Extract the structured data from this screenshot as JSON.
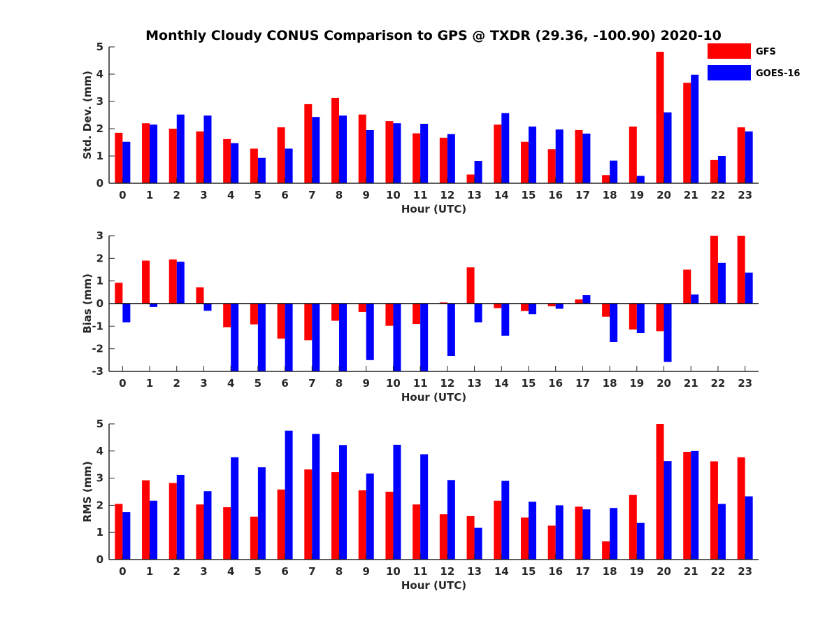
{
  "title": "Monthly Cloudy CONUS Comparison to GPS @ TXDR (29.36, -100.90) 2020-10",
  "legend": {
    "position": "top-right",
    "entries": [
      {
        "name": "GFS",
        "color": "#ff0000"
      },
      {
        "name": "GOES-16",
        "color": "#0000ff"
      }
    ]
  },
  "chart_data": [
    {
      "type": "bar",
      "xlabel": "Hour (UTC)",
      "ylabel": "Std. Dev. (mm)",
      "ylim": [
        0,
        5
      ],
      "yticks": [
        0,
        1,
        2,
        3,
        4,
        5
      ],
      "categories": [
        "0",
        "1",
        "2",
        "3",
        "4",
        "5",
        "6",
        "7",
        "8",
        "9",
        "10",
        "11",
        "12",
        "13",
        "14",
        "15",
        "16",
        "17",
        "18",
        "19",
        "20",
        "21",
        "22",
        "23"
      ],
      "series": [
        {
          "name": "GFS",
          "color": "#ff0000",
          "values": [
            1.85,
            2.2,
            2.0,
            1.9,
            1.62,
            1.27,
            2.05,
            2.9,
            3.13,
            2.52,
            2.28,
            1.83,
            1.67,
            0.32,
            2.15,
            1.52,
            1.25,
            1.95,
            0.3,
            2.08,
            4.82,
            3.68,
            0.85,
            2.05
          ]
        },
        {
          "name": "GOES-16",
          "color": "#0000ff",
          "values": [
            1.52,
            2.15,
            2.52,
            2.48,
            1.47,
            0.93,
            1.27,
            2.43,
            2.48,
            1.95,
            2.2,
            2.18,
            1.8,
            0.82,
            2.57,
            2.08,
            1.97,
            1.82,
            0.83,
            0.27,
            2.6,
            3.98,
            1.0,
            1.9
          ]
        }
      ]
    },
    {
      "type": "bar",
      "xlabel": "Hour (UTC)",
      "ylabel": "Bias (mm)",
      "ylim": [
        -3,
        3
      ],
      "yticks": [
        -3,
        -2,
        -1,
        0,
        1,
        2,
        3
      ],
      "categories": [
        "0",
        "1",
        "2",
        "3",
        "4",
        "5",
        "6",
        "7",
        "8",
        "9",
        "10",
        "11",
        "12",
        "13",
        "14",
        "15",
        "16",
        "17",
        "18",
        "19",
        "20",
        "21",
        "22",
        "23"
      ],
      "series": [
        {
          "name": "GFS",
          "color": "#ff0000",
          "values": [
            0.92,
            1.9,
            1.95,
            0.72,
            -1.05,
            -0.92,
            -1.55,
            -1.62,
            -0.76,
            -0.37,
            -0.98,
            -0.9,
            0.05,
            1.6,
            -0.2,
            -0.33,
            -0.12,
            0.18,
            -0.58,
            -1.15,
            -1.22,
            1.5,
            3.0,
            3.0
          ]
        },
        {
          "name": "GOES-16",
          "color": "#0000ff",
          "values": [
            -0.83,
            -0.15,
            1.85,
            -0.32,
            -3.0,
            -3.0,
            -3.0,
            -3.0,
            -3.0,
            -2.5,
            -3.0,
            -3.0,
            -2.32,
            -0.83,
            -1.42,
            -0.47,
            -0.23,
            0.37,
            -1.7,
            -1.3,
            -2.58,
            0.4,
            1.8,
            1.37
          ]
        }
      ]
    },
    {
      "type": "bar",
      "xlabel": "Hour (UTC)",
      "ylabel": "RMS (mm)",
      "ylim": [
        0,
        5
      ],
      "yticks": [
        0,
        1,
        2,
        3,
        4,
        5
      ],
      "categories": [
        "0",
        "1",
        "2",
        "3",
        "4",
        "5",
        "6",
        "7",
        "8",
        "9",
        "10",
        "11",
        "12",
        "13",
        "14",
        "15",
        "16",
        "17",
        "18",
        "19",
        "20",
        "21",
        "22",
        "23"
      ],
      "series": [
        {
          "name": "GFS",
          "color": "#ff0000",
          "values": [
            2.05,
            2.92,
            2.82,
            2.03,
            1.93,
            1.58,
            2.58,
            3.32,
            3.22,
            2.55,
            2.5,
            2.03,
            1.67,
            1.6,
            2.17,
            1.55,
            1.25,
            1.95,
            0.67,
            2.38,
            5.0,
            3.97,
            3.62,
            3.77
          ]
        },
        {
          "name": "GOES-16",
          "color": "#0000ff",
          "values": [
            1.75,
            2.17,
            3.12,
            2.52,
            3.77,
            3.4,
            4.75,
            4.63,
            4.22,
            3.17,
            4.23,
            3.88,
            2.93,
            1.17,
            2.9,
            2.13,
            2.0,
            1.85,
            1.9,
            1.35,
            3.63,
            4.0,
            2.05,
            2.33
          ]
        }
      ]
    }
  ]
}
